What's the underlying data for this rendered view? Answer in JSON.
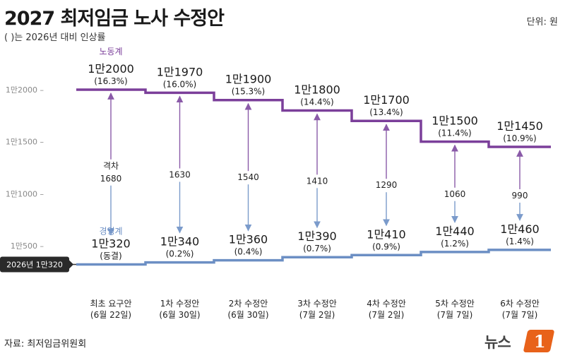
{
  "header": {
    "title": "2027 최저임금 노사 수정안",
    "subtitle": "( )는 2026년 대비 인상률",
    "unit": "단위: 원"
  },
  "footer": {
    "source": "자료: 최저임금위원회",
    "logo_text": "뉴스",
    "logo_badge": "1"
  },
  "colors": {
    "labor": "#7b3f9a",
    "management": "#6c8fc4",
    "labor_dark": "#5e2c7d",
    "management_dark": "#4f74ad",
    "arrow_labor": "#8a5aa8",
    "arrow_management": "#7b9bcb",
    "baseline_badge": "#2a2a2a"
  },
  "chart_data": {
    "type": "step-line",
    "categories": [
      [
        "최초 요구안",
        "(6월 22일)"
      ],
      [
        "1차 수정안",
        "(6월 30일)"
      ],
      [
        "2차 수정안",
        "(6월 30일)"
      ],
      [
        "3차 수정안",
        "(7월 2일)"
      ],
      [
        "4차 수정안",
        "(7월 2일)"
      ],
      [
        "5차 수정안",
        "(7월 7일)"
      ],
      [
        "6차 수정안",
        "(7월 7일)"
      ]
    ],
    "y_ticks": [
      {
        "value": 12000,
        "label": "1만2000"
      },
      {
        "value": 11500,
        "label": "1만1500"
      },
      {
        "value": 11000,
        "label": "1만1000"
      },
      {
        "value": 10500,
        "label": "1만500"
      }
    ],
    "baseline": {
      "value": 10320,
      "label": "2026년 1만320"
    },
    "series": [
      {
        "name": "노동계",
        "values": [
          12000,
          11970,
          11900,
          11800,
          11700,
          11500,
          11450
        ],
        "value_labels": [
          "1만2000",
          "1만1970",
          "1만1900",
          "1만1800",
          "1만1700",
          "1만1500",
          "1만1450"
        ],
        "rate_labels": [
          "(16.3%)",
          "(16.0%)",
          "(15.3%)",
          "(14.4%)",
          "(13.4%)",
          "(11.4%)",
          "(10.9%)"
        ]
      },
      {
        "name": "경영계",
        "values": [
          10320,
          10340,
          10360,
          10390,
          10410,
          10440,
          10460
        ],
        "value_labels": [
          "1만320",
          "1만340",
          "1만360",
          "1만390",
          "1만410",
          "1만440",
          "1만460"
        ],
        "rate_labels": [
          "(동결)",
          "(0.2%)",
          "(0.4%)",
          "(0.7%)",
          "(0.9%)",
          "(1.2%)",
          "(1.4%)"
        ]
      }
    ],
    "gaps": [
      {
        "label": [
          "격차",
          "1680"
        ]
      },
      {
        "label": [
          "1630"
        ]
      },
      {
        "label": [
          "1540"
        ]
      },
      {
        "label": [
          "1410"
        ]
      },
      {
        "label": [
          "1290"
        ]
      },
      {
        "label": [
          "1060"
        ]
      },
      {
        "label": [
          "990"
        ]
      }
    ]
  }
}
